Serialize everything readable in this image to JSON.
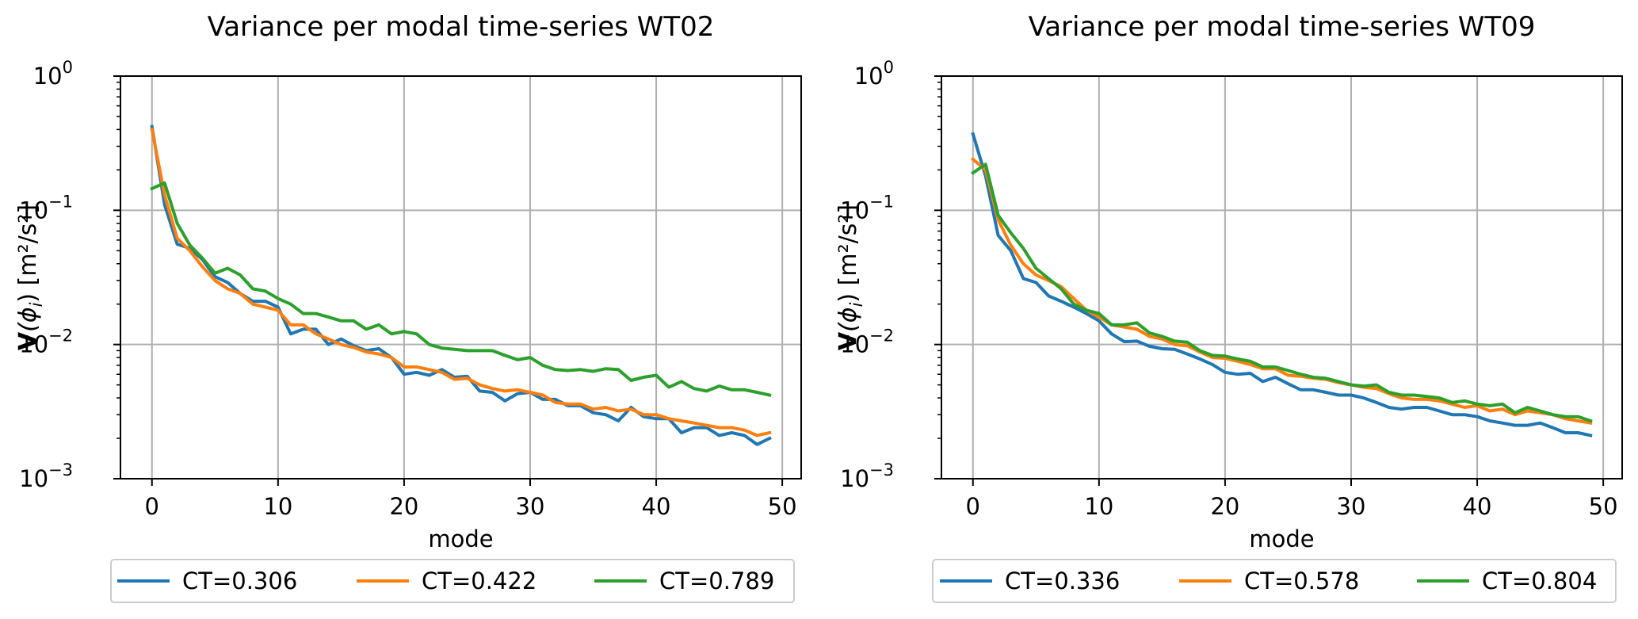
{
  "figure": {
    "panels": [
      "WT02",
      "WT09"
    ]
  },
  "chart_data": [
    {
      "type": "line",
      "title": "Variance per modal time-series WT02",
      "xlabel": "mode",
      "ylabel_bold": "V",
      "ylabel_rest": "(ϕ",
      "ylabel_sub": "i",
      "ylabel_units": ") [m²/s²]",
      "yscale": "log",
      "xlim": [
        -2.5,
        51.5
      ],
      "ylim": [
        0.001,
        1
      ],
      "xticks": [
        0,
        10,
        20,
        30,
        40,
        50
      ],
      "xtick_labels": [
        "0",
        "10",
        "20",
        "30",
        "40",
        "50"
      ],
      "yticks": [
        0.001,
        0.01,
        0.1,
        1
      ],
      "ytick_labels": [
        {
          "base": "10",
          "exp": "−3"
        },
        {
          "base": "10",
          "exp": "−2"
        },
        {
          "base": "10",
          "exp": "−1"
        },
        {
          "base": "10",
          "exp": "0"
        }
      ],
      "grid": true,
      "legend_position": "bottom-center",
      "series": [
        {
          "name": "CT=0.306",
          "color": "#1f77b4",
          "values": [
            0.42,
            0.11,
            0.056,
            0.052,
            0.043,
            0.032,
            0.029,
            0.024,
            0.021,
            0.021,
            0.019,
            0.012,
            0.013,
            0.013,
            0.01,
            0.011,
            0.0098,
            0.009,
            0.0093,
            0.008,
            0.006,
            0.0062,
            0.0059,
            0.0065,
            0.0057,
            0.0058,
            0.0045,
            0.0044,
            0.0038,
            0.0043,
            0.0044,
            0.0039,
            0.0039,
            0.0035,
            0.0035,
            0.0031,
            0.003,
            0.0027,
            0.0034,
            0.0029,
            0.0028,
            0.0028,
            0.0022,
            0.0024,
            0.0024,
            0.0021,
            0.0022,
            0.0021,
            0.0018,
            0.002
          ]
        },
        {
          "name": "CT=0.422",
          "color": "#ff7f0e",
          "values": [
            0.4,
            0.13,
            0.062,
            0.05,
            0.038,
            0.03,
            0.026,
            0.024,
            0.02,
            0.019,
            0.018,
            0.014,
            0.014,
            0.012,
            0.011,
            0.01,
            0.0095,
            0.0088,
            0.0085,
            0.008,
            0.0068,
            0.0068,
            0.0065,
            0.0062,
            0.0055,
            0.0056,
            0.005,
            0.0047,
            0.0045,
            0.0046,
            0.0044,
            0.0042,
            0.0037,
            0.0036,
            0.0036,
            0.0033,
            0.0034,
            0.0032,
            0.0033,
            0.003,
            0.003,
            0.0028,
            0.0027,
            0.0026,
            0.0025,
            0.0024,
            0.0024,
            0.0023,
            0.0021,
            0.0022
          ]
        },
        {
          "name": "CT=0.789",
          "color": "#2ca02c",
          "values": [
            0.145,
            0.16,
            0.08,
            0.055,
            0.044,
            0.034,
            0.037,
            0.033,
            0.026,
            0.025,
            0.022,
            0.02,
            0.017,
            0.017,
            0.016,
            0.015,
            0.015,
            0.013,
            0.014,
            0.012,
            0.0125,
            0.012,
            0.01,
            0.0094,
            0.0092,
            0.009,
            0.009,
            0.009,
            0.0083,
            0.0077,
            0.008,
            0.007,
            0.0065,
            0.0064,
            0.0065,
            0.0063,
            0.0066,
            0.0065,
            0.0054,
            0.0057,
            0.0059,
            0.0048,
            0.0053,
            0.0047,
            0.0045,
            0.0049,
            0.0046,
            0.0046,
            0.0044,
            0.0042
          ]
        }
      ]
    },
    {
      "type": "line",
      "title": "Variance per modal time-series WT09",
      "xlabel": "mode",
      "ylabel_bold": "V",
      "ylabel_rest": "(ϕ",
      "ylabel_sub": "i",
      "ylabel_units": ") [m²/s²]",
      "yscale": "log",
      "xlim": [
        -2.5,
        51.5
      ],
      "ylim": [
        0.001,
        1
      ],
      "xticks": [
        0,
        10,
        20,
        30,
        40,
        50
      ],
      "xtick_labels": [
        "0",
        "10",
        "20",
        "30",
        "40",
        "50"
      ],
      "yticks": [
        0.001,
        0.01,
        0.1,
        1
      ],
      "ytick_labels": [
        {
          "base": "10",
          "exp": "−3"
        },
        {
          "base": "10",
          "exp": "−2"
        },
        {
          "base": "10",
          "exp": "−1"
        },
        {
          "base": "10",
          "exp": "0"
        }
      ],
      "grid": true,
      "legend_position": "bottom-center",
      "series": [
        {
          "name": "CT=0.336",
          "color": "#1f77b4",
          "values": [
            0.37,
            0.18,
            0.065,
            0.05,
            0.031,
            0.029,
            0.023,
            0.021,
            0.019,
            0.017,
            0.015,
            0.012,
            0.0105,
            0.0106,
            0.0097,
            0.0093,
            0.0092,
            0.0085,
            0.0078,
            0.0071,
            0.0062,
            0.006,
            0.0061,
            0.0053,
            0.0057,
            0.0051,
            0.0046,
            0.0046,
            0.0044,
            0.0042,
            0.0042,
            0.004,
            0.0037,
            0.0034,
            0.0033,
            0.0034,
            0.0034,
            0.0032,
            0.003,
            0.003,
            0.0029,
            0.0027,
            0.0026,
            0.0025,
            0.0025,
            0.0026,
            0.0024,
            0.0022,
            0.0022,
            0.0021
          ]
        },
        {
          "name": "CT=0.578",
          "color": "#ff7f0e",
          "values": [
            0.24,
            0.2,
            0.085,
            0.055,
            0.04,
            0.033,
            0.03,
            0.027,
            0.022,
            0.018,
            0.016,
            0.014,
            0.0135,
            0.013,
            0.0115,
            0.011,
            0.01,
            0.0098,
            0.0088,
            0.008,
            0.0079,
            0.0075,
            0.0071,
            0.0066,
            0.0066,
            0.0059,
            0.0058,
            0.0056,
            0.0055,
            0.0052,
            0.005,
            0.0048,
            0.0047,
            0.0043,
            0.004,
            0.0039,
            0.0039,
            0.0038,
            0.0036,
            0.0034,
            0.0035,
            0.0032,
            0.0033,
            0.003,
            0.0032,
            0.0031,
            0.003,
            0.0028,
            0.0027,
            0.0026
          ]
        },
        {
          "name": "CT=0.804",
          "color": "#2ca02c",
          "values": [
            0.19,
            0.22,
            0.092,
            0.068,
            0.052,
            0.037,
            0.031,
            0.026,
            0.02,
            0.018,
            0.017,
            0.014,
            0.014,
            0.0145,
            0.0122,
            0.0115,
            0.0106,
            0.0104,
            0.009,
            0.0083,
            0.0082,
            0.0078,
            0.0075,
            0.0068,
            0.0068,
            0.0064,
            0.006,
            0.0057,
            0.0056,
            0.0053,
            0.005,
            0.0049,
            0.005,
            0.0044,
            0.0042,
            0.0042,
            0.0041,
            0.004,
            0.0037,
            0.0038,
            0.0036,
            0.0035,
            0.0036,
            0.0031,
            0.0034,
            0.0032,
            0.003,
            0.0029,
            0.0029,
            0.0027
          ]
        }
      ]
    }
  ]
}
